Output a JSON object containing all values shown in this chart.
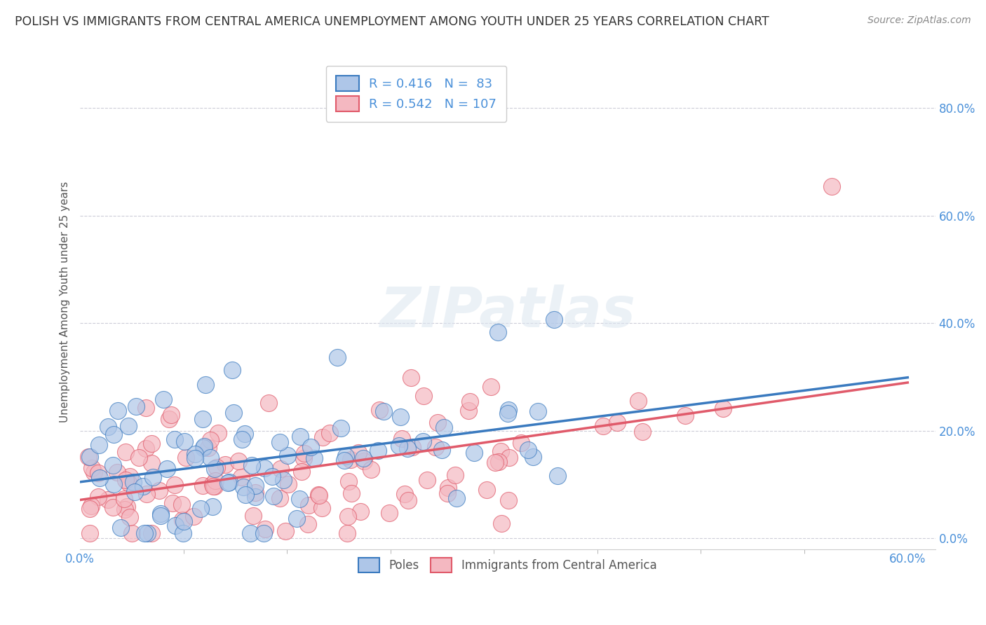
{
  "title": "POLISH VS IMMIGRANTS FROM CENTRAL AMERICA UNEMPLOYMENT AMONG YOUTH UNDER 25 YEARS CORRELATION CHART",
  "source": "Source: ZipAtlas.com",
  "ylabel": "Unemployment Among Youth under 25 years",
  "xlim": [
    0.0,
    0.62
  ],
  "ylim": [
    -0.02,
    0.9
  ],
  "xtick_positions": [
    0.0,
    0.6
  ],
  "xtick_labels": [
    "0.0%",
    "60.0%"
  ],
  "yticks": [
    0.0,
    0.2,
    0.4,
    0.6,
    0.8
  ],
  "ytick_labels": [
    "0.0%",
    "20.0%",
    "40.0%",
    "60.0%",
    "80.0%"
  ],
  "legend_labels": [
    "Poles",
    "Immigrants from Central America"
  ],
  "poles_R": 0.416,
  "poles_N": 83,
  "ca_R": 0.542,
  "ca_N": 107,
  "poles_color": "#aec6e8",
  "ca_color": "#f4b8c1",
  "poles_line_color": "#3a7abf",
  "ca_line_color": "#e05a6a",
  "background_color": "#ffffff",
  "grid_color": "#c8c8d4",
  "tick_color": "#4a90d9",
  "title_color": "#333333",
  "axis_label_color": "#555555"
}
